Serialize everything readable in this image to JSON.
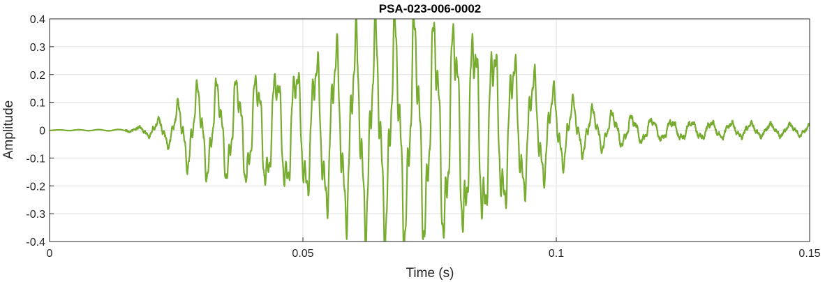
{
  "chart_data": {
    "type": "line",
    "title": "PSA-023-006-0002",
    "xlabel": "Time (s)",
    "ylabel": "Amplitude",
    "xlim": [
      0,
      0.15
    ],
    "ylim": [
      -0.4,
      0.4
    ],
    "grid": true,
    "x_ticks": [
      0,
      0.05,
      0.1,
      0.15
    ],
    "x_tick_labels": [
      "0",
      "0.05",
      "0.1",
      "0.15"
    ],
    "y_ticks": [
      -0.4,
      -0.3,
      -0.2,
      -0.1,
      0,
      0.1,
      0.2,
      0.3,
      0.4
    ],
    "y_tick_labels": [
      "-0.4",
      "-0.3",
      "-0.2",
      "-0.1",
      "0",
      "0.1",
      "0.2",
      "0.3",
      "0.4"
    ],
    "series_color": "#77AC30",
    "envelope": {
      "t": [
        0,
        0.015,
        0.018,
        0.021,
        0.024,
        0.027,
        0.03,
        0.035,
        0.04,
        0.045,
        0.05,
        0.055,
        0.06,
        0.065,
        0.07,
        0.075,
        0.08,
        0.085,
        0.09,
        0.095,
        0.1,
        0.105,
        0.11,
        0.115,
        0.12,
        0.13,
        0.14,
        0.15
      ],
      "amp": [
        0.001,
        0.003,
        0.012,
        0.03,
        0.06,
        0.12,
        0.15,
        0.16,
        0.18,
        0.2,
        0.22,
        0.27,
        0.32,
        0.35,
        0.36,
        0.36,
        0.36,
        0.33,
        0.27,
        0.2,
        0.13,
        0.08,
        0.06,
        0.045,
        0.035,
        0.028,
        0.022,
        0.018
      ]
    },
    "approx_period_s": 0.0039,
    "noise_amplitude": 0.012,
    "sample_step_s": 4e-05
  }
}
